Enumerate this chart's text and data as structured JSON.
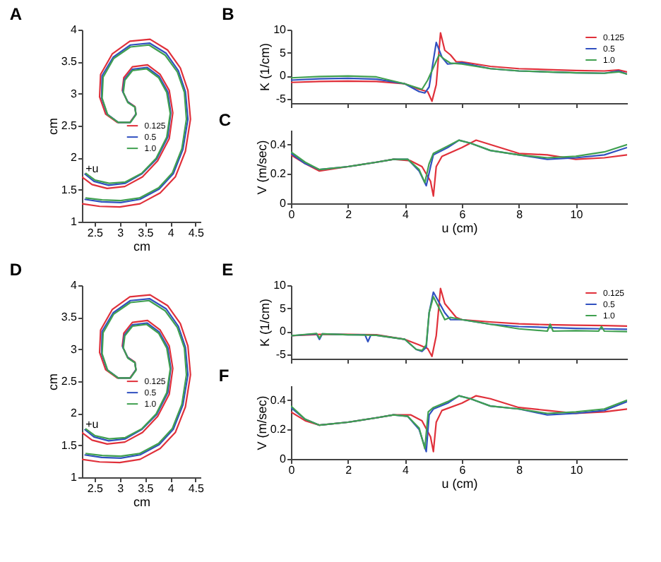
{
  "chart_data": [
    {
      "type": "line",
      "title": "A",
      "xlabel": "cm",
      "ylabel": "cm",
      "xlim": [
        2.25,
        4.6
      ],
      "ylim": [
        1,
        4
      ],
      "xticks": [
        2.5,
        3,
        3.5,
        4,
        4.5
      ],
      "yticks": [
        1,
        1.5,
        2,
        2.5,
        3,
        3.5,
        4
      ],
      "grid": false,
      "legend": "center",
      "annotations": [
        {
          "text": "+u",
          "x": 2.45,
          "y": 1.82
        }
      ],
      "series": [
        {
          "name": "0.125",
          "color": "#e0303a",
          "x": [
            2.25,
            2.6,
            3.0,
            3.4,
            3.8,
            4.1,
            4.3,
            4.4,
            4.35,
            4.2,
            3.95,
            3.6,
            3.2,
            2.85,
            2.62,
            2.6,
            2.72,
            2.95,
            3.2,
            3.32,
            3.3,
            3.15,
            3.05,
            3.08,
            3.25,
            3.55,
            3.8,
            3.98,
            4.05,
            3.98,
            3.75,
            3.45,
            3.1,
            2.75,
            2.45,
            2.25
          ],
          "values": [
            1.28,
            1.24,
            1.23,
            1.28,
            1.45,
            1.7,
            2.1,
            2.6,
            3.05,
            3.4,
            3.68,
            3.85,
            3.82,
            3.62,
            3.3,
            2.95,
            2.68,
            2.55,
            2.55,
            2.68,
            2.8,
            2.88,
            3.05,
            3.25,
            3.42,
            3.45,
            3.3,
            3.05,
            2.7,
            2.3,
            1.95,
            1.7,
            1.55,
            1.52,
            1.58,
            1.7
          ]
        },
        {
          "name": "0.5",
          "color": "#3050c0",
          "x": [
            2.3,
            2.64,
            3.02,
            3.4,
            3.78,
            4.06,
            4.25,
            4.35,
            4.3,
            4.16,
            3.92,
            3.59,
            3.21,
            2.87,
            2.65,
            2.64,
            2.75,
            2.97,
            3.21,
            3.32,
            3.3,
            3.16,
            3.06,
            3.09,
            3.25,
            3.54,
            3.78,
            3.95,
            4.01,
            3.95,
            3.73,
            3.44,
            3.11,
            2.78,
            2.49,
            2.3
          ],
          "values": [
            1.35,
            1.31,
            1.3,
            1.35,
            1.51,
            1.75,
            2.13,
            2.6,
            3.03,
            3.36,
            3.63,
            3.79,
            3.76,
            3.57,
            3.28,
            2.93,
            2.68,
            2.55,
            2.55,
            2.68,
            2.79,
            2.87,
            3.03,
            3.22,
            3.38,
            3.41,
            3.27,
            3.03,
            2.7,
            2.32,
            1.98,
            1.75,
            1.6,
            1.57,
            1.63,
            1.75
          ]
        },
        {
          "name": "1.0",
          "color": "#40a050",
          "x": [
            2.32,
            2.65,
            3.02,
            3.39,
            3.77,
            4.04,
            4.23,
            4.32,
            4.28,
            4.14,
            3.9,
            3.58,
            3.21,
            2.88,
            2.67,
            2.65,
            2.76,
            2.97,
            3.21,
            3.32,
            3.3,
            3.16,
            3.07,
            3.1,
            3.25,
            3.53,
            3.77,
            3.93,
            4.0,
            3.93,
            3.72,
            3.44,
            3.11,
            2.79,
            2.51,
            2.32
          ],
          "values": [
            1.37,
            1.34,
            1.33,
            1.37,
            1.53,
            1.76,
            2.14,
            2.6,
            3.02,
            3.34,
            3.6,
            3.76,
            3.73,
            3.55,
            3.26,
            2.93,
            2.67,
            2.55,
            2.55,
            2.67,
            2.79,
            2.86,
            3.02,
            3.21,
            3.36,
            3.39,
            3.25,
            3.02,
            2.69,
            2.32,
            1.99,
            1.76,
            1.62,
            1.6,
            1.65,
            1.76
          ]
        }
      ]
    },
    {
      "type": "line",
      "title": "B",
      "ylabel": "K (1/cm)",
      "xlim": [
        0,
        11.8
      ],
      "ylim": [
        -6,
        10
      ],
      "xticks": [
        0,
        2,
        4,
        6,
        8,
        10
      ],
      "yticks": [
        -5,
        0,
        5,
        10
      ],
      "grid": false,
      "legend": "top right",
      "tick_labels": "y",
      "series": [
        {
          "name": "0.125",
          "color": "#e0303a",
          "x": [
            0,
            1,
            2,
            3,
            4,
            4.5,
            4.8,
            4.95,
            5.1,
            5.25,
            5.4,
            5.6,
            5.8,
            6,
            7,
            8,
            9,
            10,
            11,
            11.5,
            11.8
          ],
          "values": [
            -1.5,
            -1.3,
            -1.2,
            -1.3,
            -1.8,
            -3,
            -3.5,
            -5.6,
            -2,
            9.3,
            5.5,
            4.5,
            3,
            3,
            2,
            1.5,
            1.3,
            1.1,
            1,
            1.2,
            0.8
          ]
        },
        {
          "name": "0.5",
          "color": "#3050c0",
          "x": [
            0,
            1,
            2,
            3,
            4,
            4.5,
            4.7,
            4.85,
            5.1,
            5.3,
            5.5,
            6,
            7,
            8,
            9,
            10,
            11,
            11.5,
            11.8
          ],
          "values": [
            -1,
            -0.7,
            -0.6,
            -0.8,
            -1.8,
            -3.5,
            -3.8,
            -2.5,
            7.2,
            4,
            2.5,
            2.8,
            1.5,
            1,
            0.8,
            0.6,
            0.5,
            1,
            0.3
          ]
        },
        {
          "name": "1.0",
          "color": "#40a050",
          "x": [
            0,
            1,
            2,
            3,
            4,
            4.6,
            4.8,
            5.2,
            5.4,
            5.6,
            6,
            7,
            8,
            9,
            10,
            11,
            11.5,
            11.8
          ],
          "values": [
            -0.5,
            -0.2,
            -0.1,
            -0.3,
            -1.8,
            -3,
            -1,
            4.5,
            3.5,
            2.7,
            2.5,
            1.5,
            1,
            0.8,
            0.6,
            0.5,
            0.8,
            0.3
          ]
        }
      ]
    },
    {
      "type": "line",
      "title": "C",
      "xlabel": "u (cm)",
      "ylabel": "V (m/sec)",
      "xlim": [
        0,
        11.8
      ],
      "ylim": [
        0,
        0.5
      ],
      "xticks": [
        0,
        2,
        4,
        6,
        8,
        10
      ],
      "yticks": [
        0,
        0.2,
        0.4
      ],
      "grid": false,
      "series": [
        {
          "color": "#e0303a",
          "x": [
            0,
            0.5,
            1,
            2,
            3,
            3.6,
            4.2,
            4.6,
            4.9,
            5.0,
            5.1,
            5.3,
            6,
            6.5,
            7,
            8,
            9,
            10,
            11,
            11.8
          ],
          "values": [
            0.33,
            0.27,
            0.22,
            0.25,
            0.28,
            0.3,
            0.29,
            0.25,
            0.15,
            0.05,
            0.25,
            0.32,
            0.38,
            0.43,
            0.4,
            0.34,
            0.33,
            0.3,
            0.31,
            0.33
          ]
        },
        {
          "color": "#3050c0",
          "x": [
            0,
            0.5,
            1,
            2,
            3,
            3.6,
            4.1,
            4.5,
            4.75,
            4.9,
            5,
            5.5,
            5.9,
            6.3,
            7,
            8,
            9,
            10,
            11,
            11.8
          ],
          "values": [
            0.34,
            0.27,
            0.23,
            0.25,
            0.28,
            0.3,
            0.3,
            0.22,
            0.12,
            0.25,
            0.33,
            0.38,
            0.43,
            0.41,
            0.36,
            0.33,
            0.3,
            0.31,
            0.33,
            0.38
          ]
        },
        {
          "color": "#40a050",
          "x": [
            0,
            0.5,
            1,
            2,
            3,
            3.6,
            4.1,
            4.5,
            4.7,
            4.85,
            5,
            5.5,
            5.9,
            6.3,
            7,
            8,
            9,
            10,
            11,
            11.8
          ],
          "values": [
            0.35,
            0.28,
            0.23,
            0.25,
            0.28,
            0.3,
            0.3,
            0.23,
            0.14,
            0.27,
            0.34,
            0.39,
            0.43,
            0.41,
            0.36,
            0.33,
            0.31,
            0.32,
            0.35,
            0.4
          ]
        }
      ]
    },
    {
      "type": "line",
      "title": "D",
      "xlabel": "cm",
      "ylabel": "cm",
      "xlim": [
        2.25,
        4.6
      ],
      "ylim": [
        1,
        4
      ],
      "xticks": [
        2.5,
        3,
        3.5,
        4,
        4.5
      ],
      "yticks": [
        1,
        1.5,
        2,
        2.5,
        3,
        3.5,
        4
      ],
      "grid": false,
      "legend": "center",
      "annotations": [
        {
          "text": "+u",
          "x": 2.45,
          "y": 1.82
        }
      ],
      "series": [
        {
          "name": "0.125",
          "color": "#e0303a",
          "x": [
            2.25,
            2.6,
            3.0,
            3.4,
            3.8,
            4.1,
            4.3,
            4.4,
            4.35,
            4.2,
            3.95,
            3.6,
            3.2,
            2.85,
            2.62,
            2.6,
            2.72,
            2.95,
            3.2,
            3.32,
            3.3,
            3.15,
            3.05,
            3.08,
            3.25,
            3.55,
            3.8,
            3.98,
            4.05,
            3.98,
            3.75,
            3.45,
            3.1,
            2.75,
            2.45,
            2.25
          ],
          "values": [
            1.28,
            1.24,
            1.23,
            1.28,
            1.45,
            1.7,
            2.1,
            2.6,
            3.05,
            3.4,
            3.68,
            3.85,
            3.82,
            3.62,
            3.3,
            2.95,
            2.68,
            2.55,
            2.55,
            2.68,
            2.8,
            2.88,
            3.05,
            3.25,
            3.42,
            3.45,
            3.3,
            3.05,
            2.7,
            2.3,
            1.95,
            1.7,
            1.55,
            1.52,
            1.58,
            1.7
          ]
        },
        {
          "name": "0.5",
          "color": "#3050c0",
          "x": [
            2.3,
            2.64,
            3.02,
            3.4,
            3.78,
            4.06,
            4.25,
            4.35,
            4.3,
            4.16,
            3.92,
            3.59,
            3.21,
            2.87,
            2.65,
            2.64,
            2.75,
            2.97,
            3.21,
            3.32,
            3.3,
            3.16,
            3.06,
            3.09,
            3.25,
            3.54,
            3.78,
            3.95,
            4.01,
            3.95,
            3.73,
            3.44,
            3.11,
            2.78,
            2.49,
            2.3
          ],
          "values": [
            1.35,
            1.31,
            1.3,
            1.35,
            1.51,
            1.75,
            2.13,
            2.6,
            3.03,
            3.36,
            3.63,
            3.79,
            3.76,
            3.57,
            3.28,
            2.93,
            2.68,
            2.55,
            2.55,
            2.68,
            2.79,
            2.87,
            3.03,
            3.22,
            3.38,
            3.41,
            3.27,
            3.03,
            2.7,
            2.32,
            1.98,
            1.75,
            1.6,
            1.57,
            1.63,
            1.75
          ]
        },
        {
          "name": "1.0",
          "color": "#40a050",
          "x": [
            2.32,
            2.65,
            3.02,
            3.39,
            3.77,
            4.04,
            4.23,
            4.32,
            4.28,
            4.14,
            3.9,
            3.58,
            3.21,
            2.88,
            2.67,
            2.65,
            2.76,
            2.97,
            3.21,
            3.32,
            3.3,
            3.16,
            3.07,
            3.1,
            3.25,
            3.53,
            3.77,
            3.93,
            4.0,
            3.93,
            3.72,
            3.44,
            3.11,
            2.79,
            2.51,
            2.32
          ],
          "values": [
            1.37,
            1.34,
            1.33,
            1.37,
            1.53,
            1.76,
            2.14,
            2.6,
            3.02,
            3.34,
            3.6,
            3.76,
            3.73,
            3.55,
            3.26,
            2.93,
            2.67,
            2.55,
            2.55,
            2.67,
            2.79,
            2.86,
            3.02,
            3.21,
            3.36,
            3.39,
            3.25,
            3.02,
            2.69,
            2.32,
            1.99,
            1.76,
            1.62,
            1.6,
            1.65,
            1.76
          ]
        }
      ]
    },
    {
      "type": "line",
      "title": "E",
      "ylabel": "K (1/cm)",
      "xlim": [
        0,
        11.8
      ],
      "ylim": [
        -6,
        10
      ],
      "xticks": [
        0,
        2,
        4,
        6,
        8,
        10
      ],
      "yticks": [
        -5,
        0,
        5,
        10
      ],
      "grid": false,
      "legend": "top right",
      "tick_labels": "y",
      "series": [
        {
          "name": "0.125",
          "color": "#e0303a",
          "x": [
            0,
            1,
            2,
            3,
            4,
            4.5,
            4.8,
            4.95,
            5.1,
            5.25,
            5.4,
            5.6,
            5.8,
            6,
            7,
            8,
            9,
            10,
            11,
            11.8
          ],
          "values": [
            -1,
            -0.7,
            -0.7,
            -0.8,
            -1.8,
            -3,
            -3.8,
            -5.5,
            -1,
            9.3,
            6,
            4.5,
            3,
            2.5,
            2,
            1.6,
            1.4,
            1.3,
            1.2,
            1.1
          ]
        },
        {
          "name": "0.5",
          "color": "#3050c0",
          "x": [
            0,
            0.9,
            1.0,
            1.1,
            2,
            2.6,
            2.7,
            2.8,
            3,
            4,
            4.4,
            4.6,
            4.75,
            4.85,
            5,
            5.4,
            5.6,
            6,
            7,
            8,
            9,
            10,
            11,
            11.8
          ],
          "values": [
            -1,
            -0.6,
            -1.8,
            -0.6,
            -0.8,
            -0.8,
            -2.3,
            -0.9,
            -0.9,
            -1.8,
            -4,
            -4.4,
            -3.5,
            4,
            8.5,
            4,
            2.5,
            2.5,
            1.5,
            1,
            0.8,
            0.6,
            0.5,
            0.4
          ]
        },
        {
          "name": "1.0",
          "color": "#40a050",
          "x": [
            0,
            0.9,
            1.0,
            1.1,
            2,
            3,
            4,
            4.4,
            4.6,
            4.75,
            4.85,
            5,
            5.2,
            5.4,
            5.6,
            6,
            7,
            8,
            9,
            9.1,
            9.2,
            10,
            10.8,
            10.9,
            11,
            11.8
          ],
          "values": [
            -1,
            -0.5,
            -1.5,
            -0.6,
            -0.8,
            -0.9,
            -1.8,
            -4,
            -4.2,
            -3,
            4,
            7.5,
            5,
            2.5,
            3,
            2.5,
            1.5,
            0.5,
            0,
            1.5,
            0,
            0.1,
            0,
            1,
            0,
            -0.1
          ]
        }
      ]
    },
    {
      "type": "line",
      "title": "F",
      "xlabel": "u (cm)",
      "ylabel": "V (m/sec)",
      "xlim": [
        0,
        11.8
      ],
      "ylim": [
        0,
        0.5
      ],
      "xticks": [
        0,
        2,
        4,
        6,
        8,
        10
      ],
      "yticks": [
        0,
        0.2,
        0.4
      ],
      "grid": false,
      "series": [
        {
          "color": "#e0303a",
          "x": [
            0,
            0.5,
            1,
            2,
            3,
            3.6,
            4.2,
            4.6,
            4.9,
            5.0,
            5.1,
            5.3,
            6,
            6.5,
            7,
            8,
            9,
            10,
            11,
            11.8
          ],
          "values": [
            0.32,
            0.26,
            0.23,
            0.25,
            0.28,
            0.3,
            0.3,
            0.26,
            0.15,
            0.05,
            0.25,
            0.33,
            0.38,
            0.43,
            0.41,
            0.35,
            0.33,
            0.31,
            0.32,
            0.34
          ]
        },
        {
          "color": "#3050c0",
          "x": [
            0,
            0.5,
            1,
            2,
            3,
            3.6,
            4.1,
            4.5,
            4.75,
            4.85,
            5,
            5.5,
            5.9,
            6.3,
            7,
            8,
            9,
            10,
            11,
            11.8
          ],
          "values": [
            0.35,
            0.27,
            0.23,
            0.25,
            0.28,
            0.3,
            0.29,
            0.2,
            0.05,
            0.3,
            0.34,
            0.38,
            0.43,
            0.41,
            0.36,
            0.34,
            0.3,
            0.31,
            0.33,
            0.39
          ]
        },
        {
          "color": "#40a050",
          "x": [
            0,
            0.5,
            1,
            2,
            3,
            3.6,
            4.1,
            4.5,
            4.7,
            4.82,
            5,
            5.5,
            5.9,
            6.3,
            7,
            8,
            9,
            10,
            11,
            11.8
          ],
          "values": [
            0.36,
            0.27,
            0.23,
            0.25,
            0.28,
            0.3,
            0.29,
            0.21,
            0.07,
            0.32,
            0.35,
            0.39,
            0.43,
            0.41,
            0.36,
            0.34,
            0.31,
            0.32,
            0.34,
            0.4
          ]
        }
      ]
    }
  ]
}
